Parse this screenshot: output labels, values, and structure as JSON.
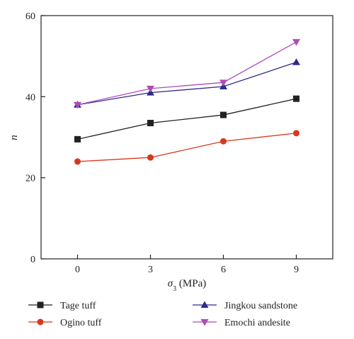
{
  "chart_data": {
    "type": "line",
    "x": [
      0,
      3,
      6,
      9
    ],
    "xticks": [
      "0",
      "3",
      "6",
      "9"
    ],
    "yticks": [
      "0",
      "20",
      "40",
      "60"
    ],
    "xlim": [
      -1.5,
      10.5
    ],
    "ylim": [
      0,
      60
    ],
    "xlabel_symbol": "σ",
    "xlabel_sub": "3",
    "xlabel_unit": " (MPa)",
    "ylabel": "n",
    "grid": false,
    "legend_position": "bottom",
    "series": [
      {
        "name": "Tage tuff",
        "values": [
          29.5,
          33.5,
          35.5,
          39.5
        ],
        "color": "#222222",
        "marker": "square"
      },
      {
        "name": "Ogino tuff",
        "values": [
          24,
          25,
          29,
          31
        ],
        "color": "#d9381e",
        "marker": "circle"
      },
      {
        "name": "Jingkou sandstone",
        "values": [
          38,
          41,
          42.5,
          48.5
        ],
        "color": "#2e2a8c",
        "marker": "triangle-up"
      },
      {
        "name": "Emochi andesite",
        "values": [
          38,
          42,
          43.5,
          53.5
        ],
        "color": "#b04ab8",
        "marker": "triangle-down"
      }
    ]
  }
}
